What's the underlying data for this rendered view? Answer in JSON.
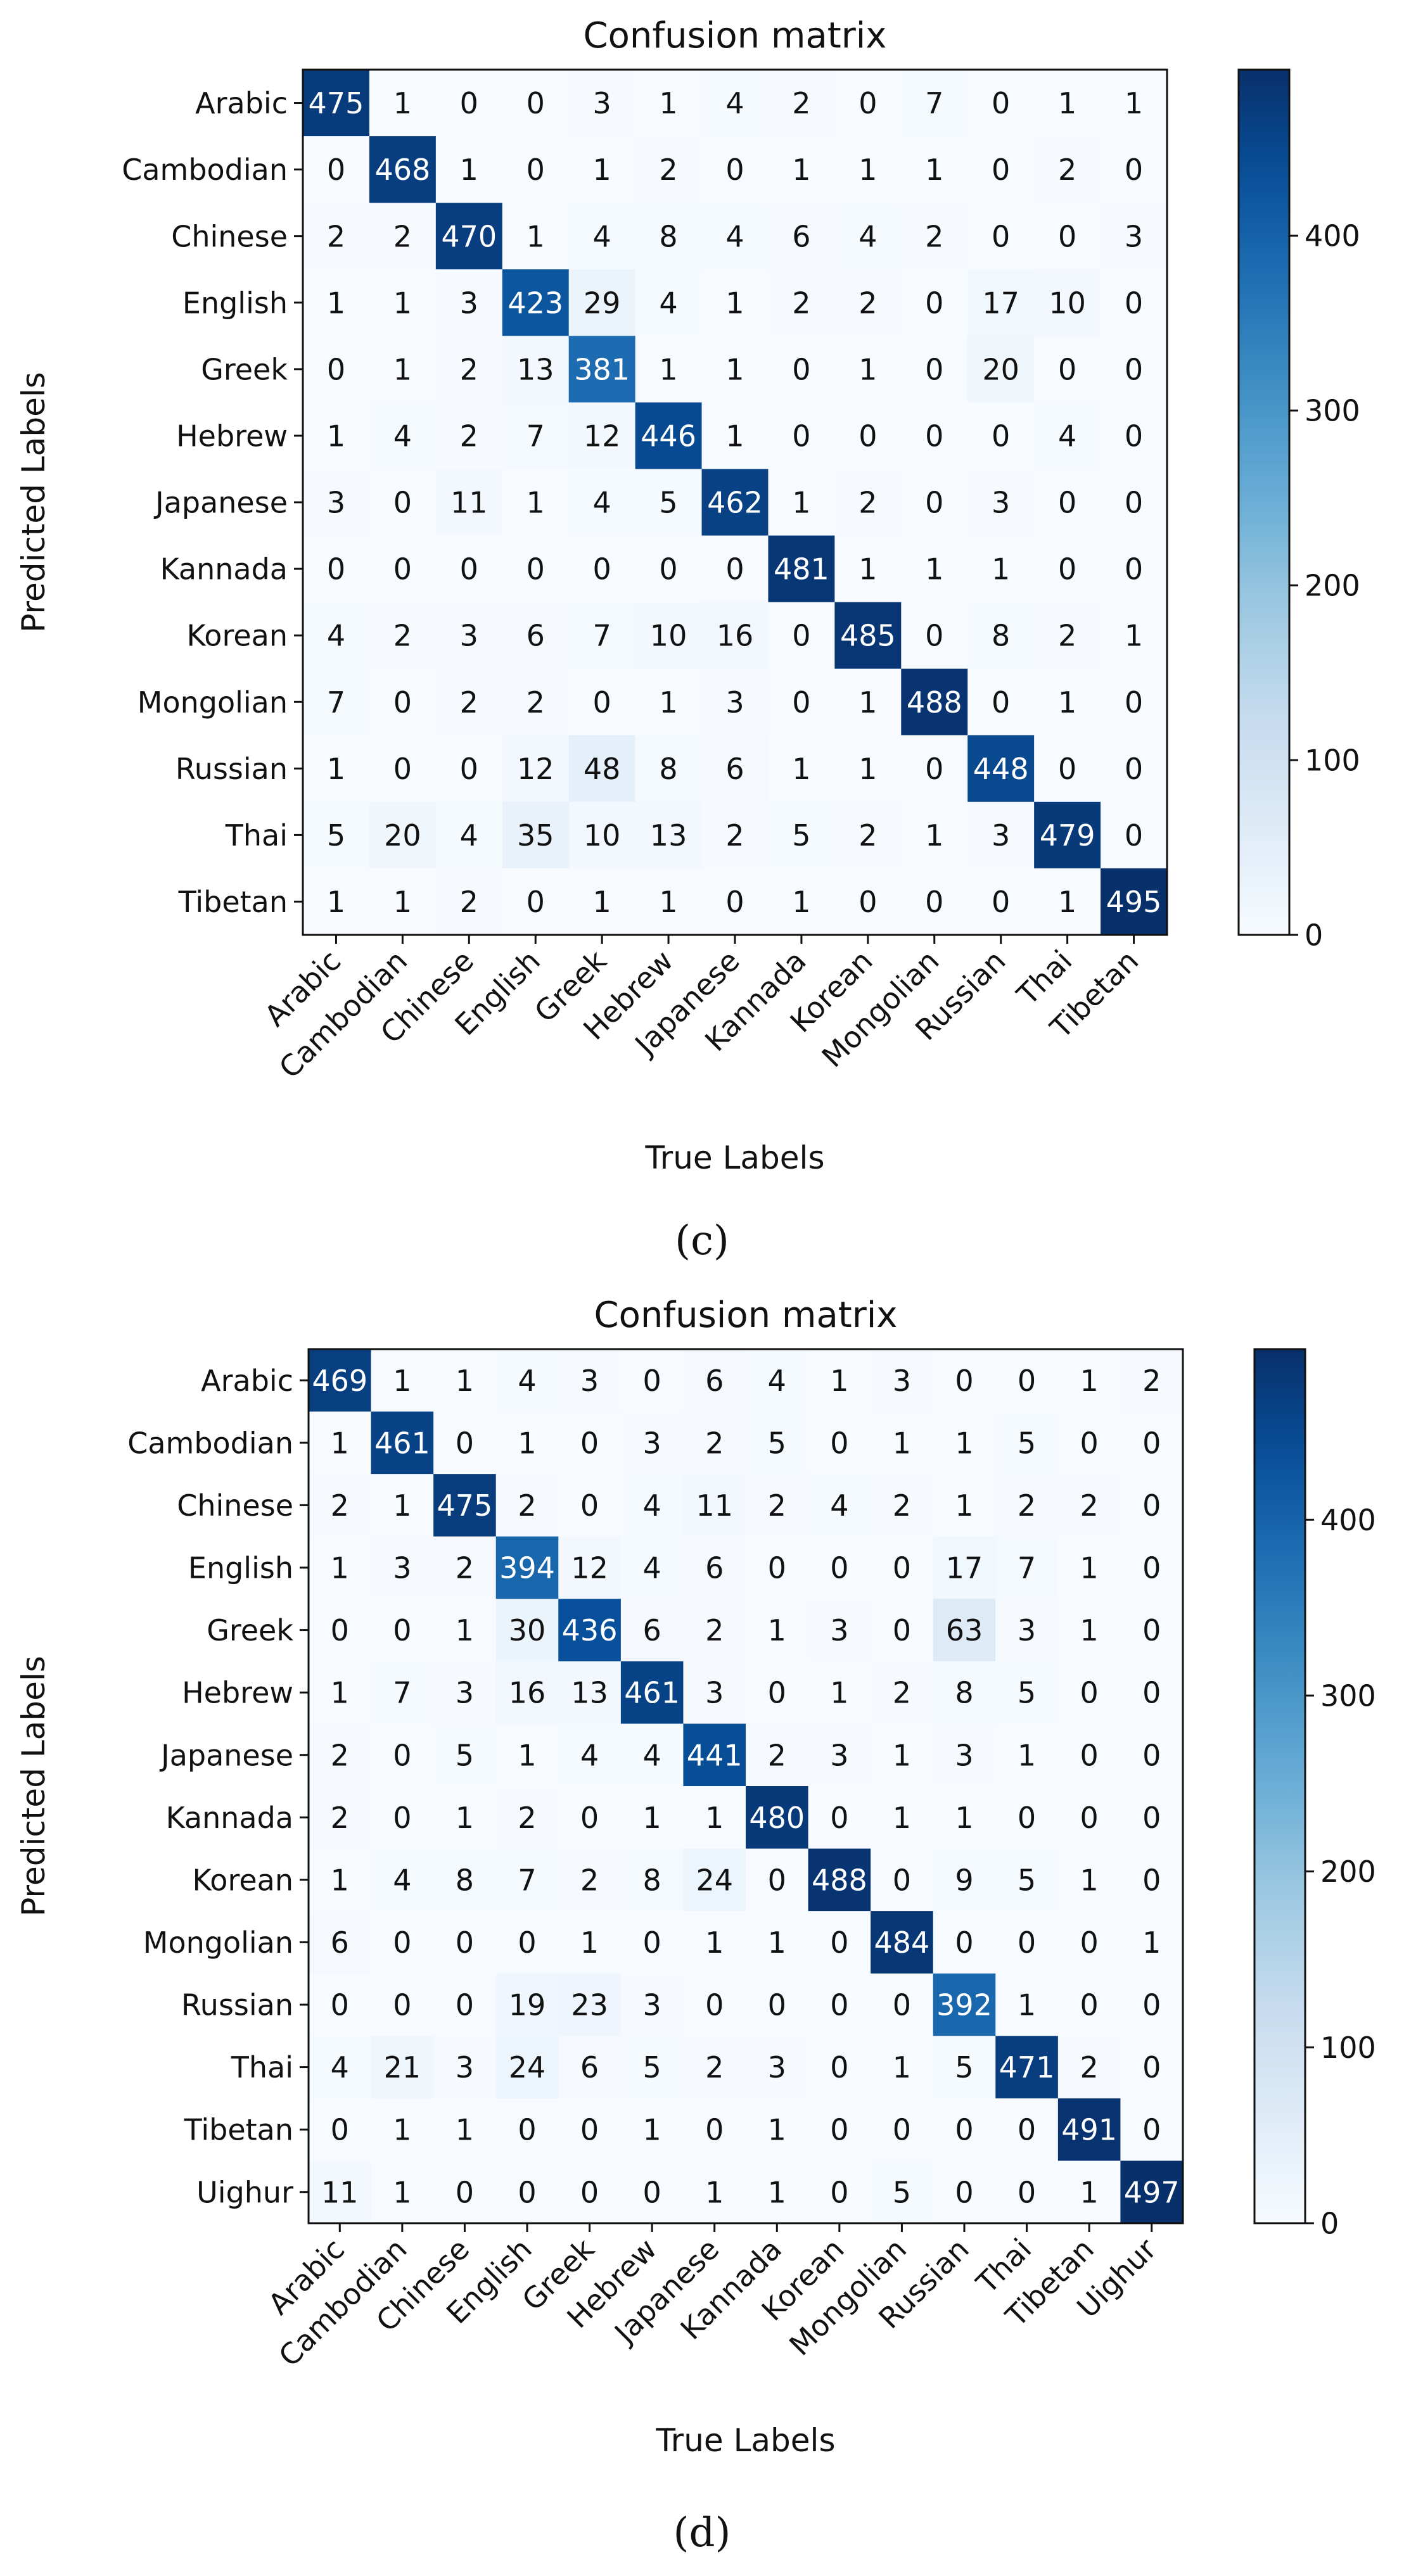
{
  "panels": [
    {
      "caption": "(c)",
      "chart_data": {
        "type": "heatmap",
        "title": "Confusion matrix",
        "xlabel": "True Labels",
        "ylabel": "Predicted Labels",
        "x_categories": [
          "Arabic",
          "Cambodian",
          "Chinese",
          "English",
          "Greek",
          "Hebrew",
          "Japanese",
          "Kannada",
          "Korean",
          "Mongolian",
          "Russian",
          "Thai",
          "Tibetan"
        ],
        "y_categories": [
          "Arabic",
          "Cambodian",
          "Chinese",
          "English",
          "Greek",
          "Hebrew",
          "Japanese",
          "Kannada",
          "Korean",
          "Mongolian",
          "Russian",
          "Thai",
          "Tibetan"
        ],
        "values": [
          [
            475,
            1,
            0,
            0,
            3,
            1,
            4,
            2,
            0,
            7,
            0,
            1,
            1
          ],
          [
            0,
            468,
            1,
            0,
            1,
            2,
            0,
            1,
            1,
            1,
            0,
            2,
            0
          ],
          [
            2,
            2,
            470,
            1,
            4,
            8,
            4,
            6,
            4,
            2,
            0,
            0,
            3
          ],
          [
            1,
            1,
            3,
            423,
            29,
            4,
            1,
            2,
            2,
            0,
            17,
            10,
            0
          ],
          [
            0,
            1,
            2,
            13,
            381,
            1,
            1,
            0,
            1,
            0,
            20,
            0,
            0
          ],
          [
            1,
            4,
            2,
            7,
            12,
            446,
            1,
            0,
            0,
            0,
            0,
            4,
            0
          ],
          [
            3,
            0,
            11,
            1,
            4,
            5,
            462,
            1,
            2,
            0,
            3,
            0,
            0
          ],
          [
            0,
            0,
            0,
            0,
            0,
            0,
            0,
            481,
            1,
            1,
            1,
            0,
            0
          ],
          [
            4,
            2,
            3,
            6,
            7,
            10,
            16,
            0,
            485,
            0,
            8,
            2,
            1
          ],
          [
            7,
            0,
            2,
            2,
            0,
            1,
            3,
            0,
            1,
            488,
            0,
            1,
            0
          ],
          [
            1,
            0,
            0,
            12,
            48,
            8,
            6,
            1,
            1,
            0,
            448,
            0,
            0
          ],
          [
            5,
            20,
            4,
            35,
            10,
            13,
            2,
            5,
            2,
            1,
            3,
            479,
            0
          ],
          [
            1,
            1,
            2,
            0,
            1,
            1,
            0,
            1,
            0,
            0,
            0,
            1,
            495
          ]
        ],
        "colorbar": {
          "ticks": [
            0,
            100,
            200,
            300,
            400
          ],
          "range": [
            0,
            495
          ],
          "colormap": "Blues"
        }
      }
    },
    {
      "caption": "(d)",
      "chart_data": {
        "type": "heatmap",
        "title": "Confusion matrix",
        "xlabel": "True Labels",
        "ylabel": "Predicted Labels",
        "x_categories": [
          "Arabic",
          "Cambodian",
          "Chinese",
          "English",
          "Greek",
          "Hebrew",
          "Japanese",
          "Kannada",
          "Korean",
          "Mongolian",
          "Russian",
          "Thai",
          "Tibetan",
          "Uighur"
        ],
        "y_categories": [
          "Arabic",
          "Cambodian",
          "Chinese",
          "English",
          "Greek",
          "Hebrew",
          "Japanese",
          "Kannada",
          "Korean",
          "Mongolian",
          "Russian",
          "Thai",
          "Tibetan",
          "Uighur"
        ],
        "values": [
          [
            469,
            1,
            1,
            4,
            3,
            0,
            6,
            4,
            1,
            3,
            0,
            0,
            1,
            2
          ],
          [
            1,
            461,
            0,
            1,
            0,
            3,
            2,
            5,
            0,
            1,
            1,
            5,
            0,
            0
          ],
          [
            2,
            1,
            475,
            2,
            0,
            4,
            11,
            2,
            4,
            2,
            1,
            2,
            2,
            0
          ],
          [
            1,
            3,
            2,
            394,
            12,
            4,
            6,
            0,
            0,
            0,
            17,
            7,
            1,
            0
          ],
          [
            0,
            0,
            1,
            30,
            436,
            6,
            2,
            1,
            3,
            0,
            63,
            3,
            1,
            0
          ],
          [
            1,
            7,
            3,
            16,
            13,
            461,
            3,
            0,
            1,
            2,
            8,
            5,
            0,
            0
          ],
          [
            2,
            0,
            5,
            1,
            4,
            4,
            441,
            2,
            3,
            1,
            3,
            1,
            0,
            0
          ],
          [
            2,
            0,
            1,
            2,
            0,
            1,
            1,
            480,
            0,
            1,
            1,
            0,
            0,
            0
          ],
          [
            1,
            4,
            8,
            7,
            2,
            8,
            24,
            0,
            488,
            0,
            9,
            5,
            1,
            0
          ],
          [
            6,
            0,
            0,
            0,
            1,
            0,
            1,
            1,
            0,
            484,
            0,
            0,
            0,
            1
          ],
          [
            0,
            0,
            0,
            19,
            23,
            3,
            0,
            0,
            0,
            0,
            392,
            1,
            0,
            0
          ],
          [
            4,
            21,
            3,
            24,
            6,
            5,
            2,
            3,
            0,
            1,
            5,
            471,
            2,
            0
          ],
          [
            0,
            1,
            1,
            0,
            0,
            1,
            0,
            1,
            0,
            0,
            0,
            0,
            491,
            0
          ],
          [
            11,
            1,
            0,
            0,
            0,
            0,
            1,
            1,
            0,
            5,
            0,
            0,
            1,
            497
          ]
        ],
        "colorbar": {
          "ticks": [
            0,
            100,
            200,
            300,
            400
          ],
          "range": [
            0,
            497
          ],
          "colormap": "Blues"
        }
      }
    }
  ]
}
